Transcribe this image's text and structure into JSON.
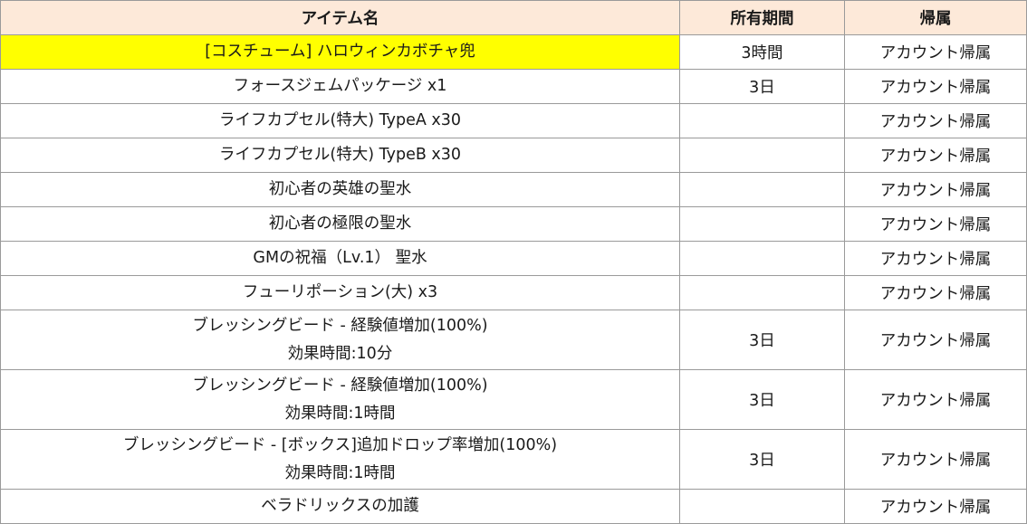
{
  "header": {
    "item_name": "アイテム名",
    "period": "所有期間",
    "binding": "帰属"
  },
  "colors": {
    "header_bg": "#fde9d9",
    "highlight_bg": "#ffff00",
    "border": "#9a9a9a"
  },
  "rows": [
    {
      "name_lines": [
        "[コスチューム] ハロウィンカボチャ兜"
      ],
      "period": "3時間",
      "binding": "アカウント帰属",
      "highlight": true
    },
    {
      "name_lines": [
        "フォースジェムパッケージ x1"
      ],
      "period": "3日",
      "binding": "アカウント帰属"
    },
    {
      "name_lines": [
        "ライフカプセル(特大) TypeA x30"
      ],
      "period": "",
      "binding": "アカウント帰属"
    },
    {
      "name_lines": [
        "ライフカプセル(特大) TypeB x30"
      ],
      "period": "",
      "binding": "アカウント帰属"
    },
    {
      "name_lines": [
        "初心者の英雄の聖水"
      ],
      "period": "",
      "binding": "アカウント帰属"
    },
    {
      "name_lines": [
        "初心者の極限の聖水"
      ],
      "period": "",
      "binding": "アカウント帰属"
    },
    {
      "name_lines": [
        "GMの祝福（Lv.1） 聖水"
      ],
      "period": "",
      "binding": "アカウント帰属"
    },
    {
      "name_lines": [
        "フューリポーション(大) x3"
      ],
      "period": "",
      "binding": "アカウント帰属"
    },
    {
      "name_lines": [
        "ブレッシングビード - 経験値増加(100%)",
        "効果時間:10分"
      ],
      "period": "3日",
      "binding": "アカウント帰属"
    },
    {
      "name_lines": [
        "ブレッシングビード - 経験値増加(100%)",
        "効果時間:1時間"
      ],
      "period": "3日",
      "binding": "アカウント帰属"
    },
    {
      "name_lines": [
        "ブレッシングビード - [ボックス]追加ドロップ率増加(100%)",
        "効果時間:1時間"
      ],
      "period": "3日",
      "binding": "アカウント帰属"
    },
    {
      "name_lines": [
        "ベラドリックスの加護"
      ],
      "period": "",
      "binding": "アカウント帰属"
    }
  ]
}
